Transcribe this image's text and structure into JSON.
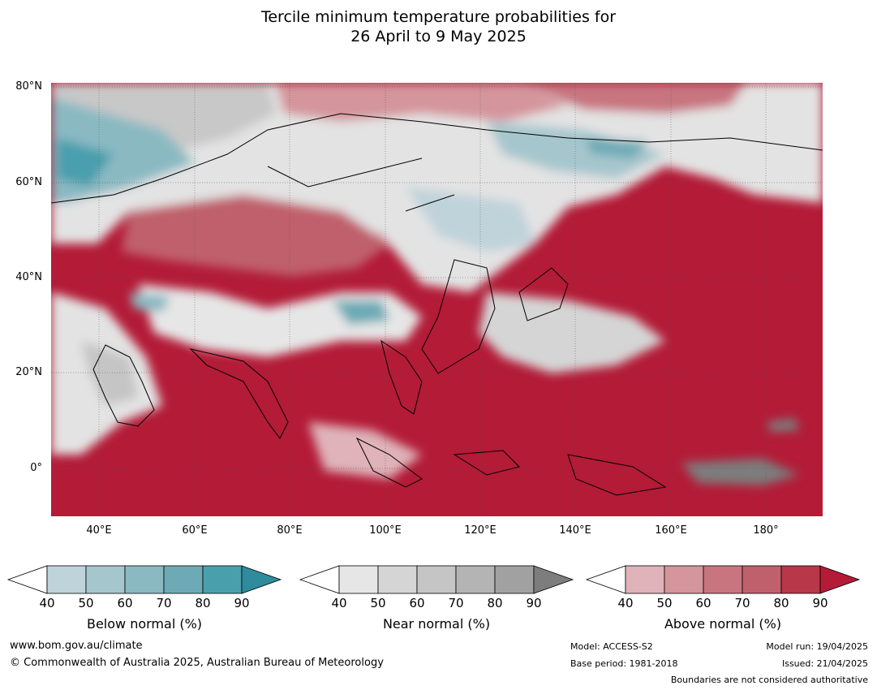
{
  "title": {
    "line1": "Tercile minimum temperature probabilities for",
    "line2": "26 April to 9 May 2025"
  },
  "map": {
    "lat_labels": [
      "80°N",
      "60°N",
      "40°N",
      "20°N",
      "0°"
    ],
    "lon_labels": [
      "40°E",
      "60°E",
      "80°E",
      "100°E",
      "120°E",
      "140°E",
      "160°E",
      "180°"
    ],
    "extent": {
      "lon_min": 30,
      "lon_max": 192,
      "lat_min": -10,
      "lat_max": 81
    }
  },
  "colorbars": [
    {
      "id": "below",
      "title": "Below normal (%)",
      "ticks": [
        "40",
        "50",
        "60",
        "70",
        "80",
        "90"
      ],
      "colors": [
        "#ffffff",
        "#bfd3da",
        "#a6c6cd",
        "#8ab9c2",
        "#6daab6",
        "#4a9fad",
        "#2e8c9c"
      ]
    },
    {
      "id": "near",
      "title": "Near normal (%)",
      "ticks": [
        "40",
        "50",
        "60",
        "70",
        "80",
        "90"
      ],
      "colors": [
        "#ffffff",
        "#e6e6e6",
        "#d5d5d5",
        "#c5c5c5",
        "#b4b4b4",
        "#a1a1a1",
        "#7d7d7d"
      ]
    },
    {
      "id": "above",
      "title": "Above normal (%)",
      "ticks": [
        "40",
        "50",
        "60",
        "70",
        "80",
        "90"
      ],
      "colors": [
        "#ffffff",
        "#dfb3b9",
        "#d4959c",
        "#c8757f",
        "#c0606c",
        "#b83748",
        "#b31b37"
      ]
    }
  ],
  "footer": {
    "website": "www.bom.gov.au/climate",
    "copyright": "© Commonwealth of Australia 2025, Australian Bureau of Meteorology",
    "model": "Model: ACCESS-S2",
    "base_period": "Base period: 1981-2018",
    "model_run": "Model run: 19/04/2025",
    "issued": "Issued: 21/04/2025",
    "disclaimer": "Boundaries are not considered authoritative"
  }
}
